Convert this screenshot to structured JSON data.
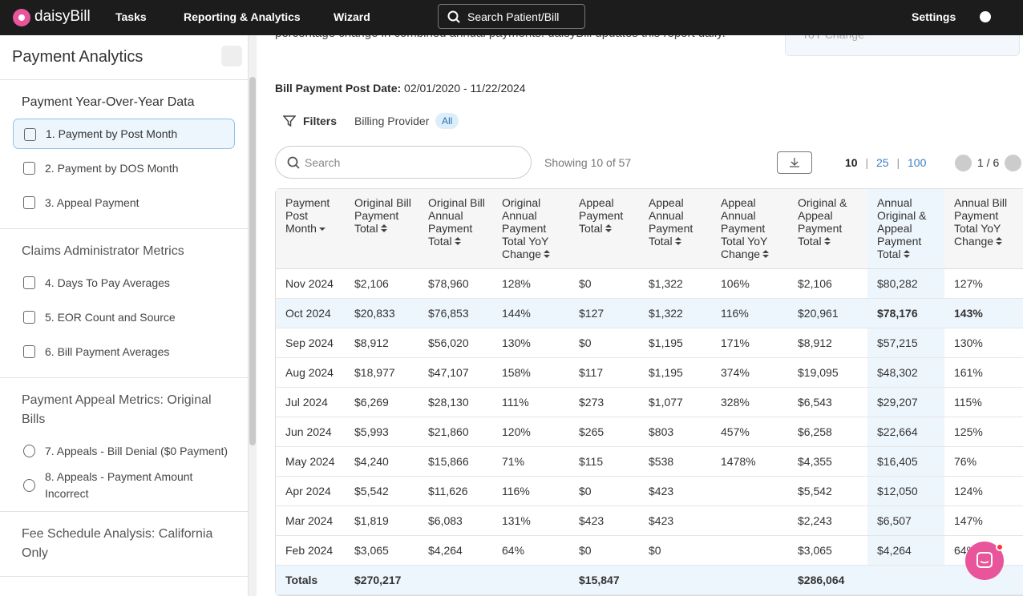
{
  "nav": {
    "brand": "daisyBill",
    "items": [
      "Tasks",
      "Reporting & Analytics",
      "Wizard"
    ],
    "search": "Search Patient/Bill",
    "settings": "Settings"
  },
  "sidebar": {
    "title": "Payment Analytics",
    "sections": [
      {
        "heading": "Payment Year-Over-Year Data",
        "items": [
          "1. Payment by Post Month",
          "2. Payment by DOS Month",
          "3. Appeal Payment"
        ]
      },
      {
        "heading": "Claims Administrator Metrics",
        "items": [
          "4. Days To Pay Averages",
          "5. EOR Count and Source",
          "6. Bill Payment Averages"
        ]
      },
      {
        "heading": "Payment Appeal Metrics: Original Bills",
        "items": [
          "7. Appeals - Bill Denial ($0 Payment)",
          "8. Appeals - Payment Amount Incorrect"
        ]
      },
      {
        "heading": "Fee Schedule Analysis: California Only",
        "items": []
      }
    ]
  },
  "intro": {
    "text": "percentage change in combined annual payments. daisyBill updates this report daily.",
    "card": "YoY Change"
  },
  "post_date": {
    "label": "Bill Payment Post Date:",
    "value": "02/01/2020 - 11/22/2024"
  },
  "filters": {
    "label": "Filters",
    "provider": "Billing Provider",
    "provider_value": "All"
  },
  "toolbar": {
    "search": "Search",
    "showing": "Showing 10 of 57",
    "page_sizes": [
      "10",
      "25",
      "100"
    ],
    "pager": "1 / 6"
  },
  "table": {
    "headers": [
      "Payment Post Month",
      "Original Bill Payment Total",
      "Original Bill Annual Payment Total",
      "Original Annual Payment Total YoY Change",
      "Appeal Payment Total",
      "Appeal Annual Payment Total",
      "Appeal Annual Payment Total YoY Change",
      "Original & Appeal Payment Total",
      "Annual Original & Appeal Payment Total",
      "Annual Bill Payment Total YoY Change"
    ],
    "rows": [
      [
        "Nov 2024",
        "$2,106",
        "$78,960",
        "128%",
        "$0",
        "$1,322",
        "106%",
        "$2,106",
        "$80,282",
        "127%"
      ],
      [
        "Oct 2024",
        "$20,833",
        "$76,853",
        "144%",
        "$127",
        "$1,322",
        "116%",
        "$20,961",
        "$78,176",
        "143%"
      ],
      [
        "Sep 2024",
        "$8,912",
        "$56,020",
        "130%",
        "$0",
        "$1,195",
        "171%",
        "$8,912",
        "$57,215",
        "130%"
      ],
      [
        "Aug 2024",
        "$18,977",
        "$47,107",
        "158%",
        "$117",
        "$1,195",
        "374%",
        "$19,095",
        "$48,302",
        "161%"
      ],
      [
        "Jul 2024",
        "$6,269",
        "$28,130",
        "111%",
        "$273",
        "$1,077",
        "328%",
        "$6,543",
        "$29,207",
        "115%"
      ],
      [
        "Jun 2024",
        "$5,993",
        "$21,860",
        "120%",
        "$265",
        "$803",
        "457%",
        "$6,258",
        "$22,664",
        "125%"
      ],
      [
        "May 2024",
        "$4,240",
        "$15,866",
        "71%",
        "$115",
        "$538",
        "1478%",
        "$4,355",
        "$16,405",
        "76%"
      ],
      [
        "Apr 2024",
        "$5,542",
        "$11,626",
        "116%",
        "$0",
        "$423",
        null,
        "$5,542",
        "$12,050",
        "124%"
      ],
      [
        "Mar 2024",
        "$1,819",
        "$6,083",
        "131%",
        "$423",
        "$423",
        null,
        "$2,243",
        "$6,507",
        "147%"
      ],
      [
        "Feb 2024",
        "$3,065",
        "$4,264",
        "64%",
        "$0",
        "$0",
        null,
        "$3,065",
        "$4,264",
        "64%"
      ]
    ],
    "totals": [
      "Totals",
      "$270,217",
      null,
      null,
      "$15,847",
      null,
      null,
      "$286,064",
      null,
      null
    ]
  }
}
